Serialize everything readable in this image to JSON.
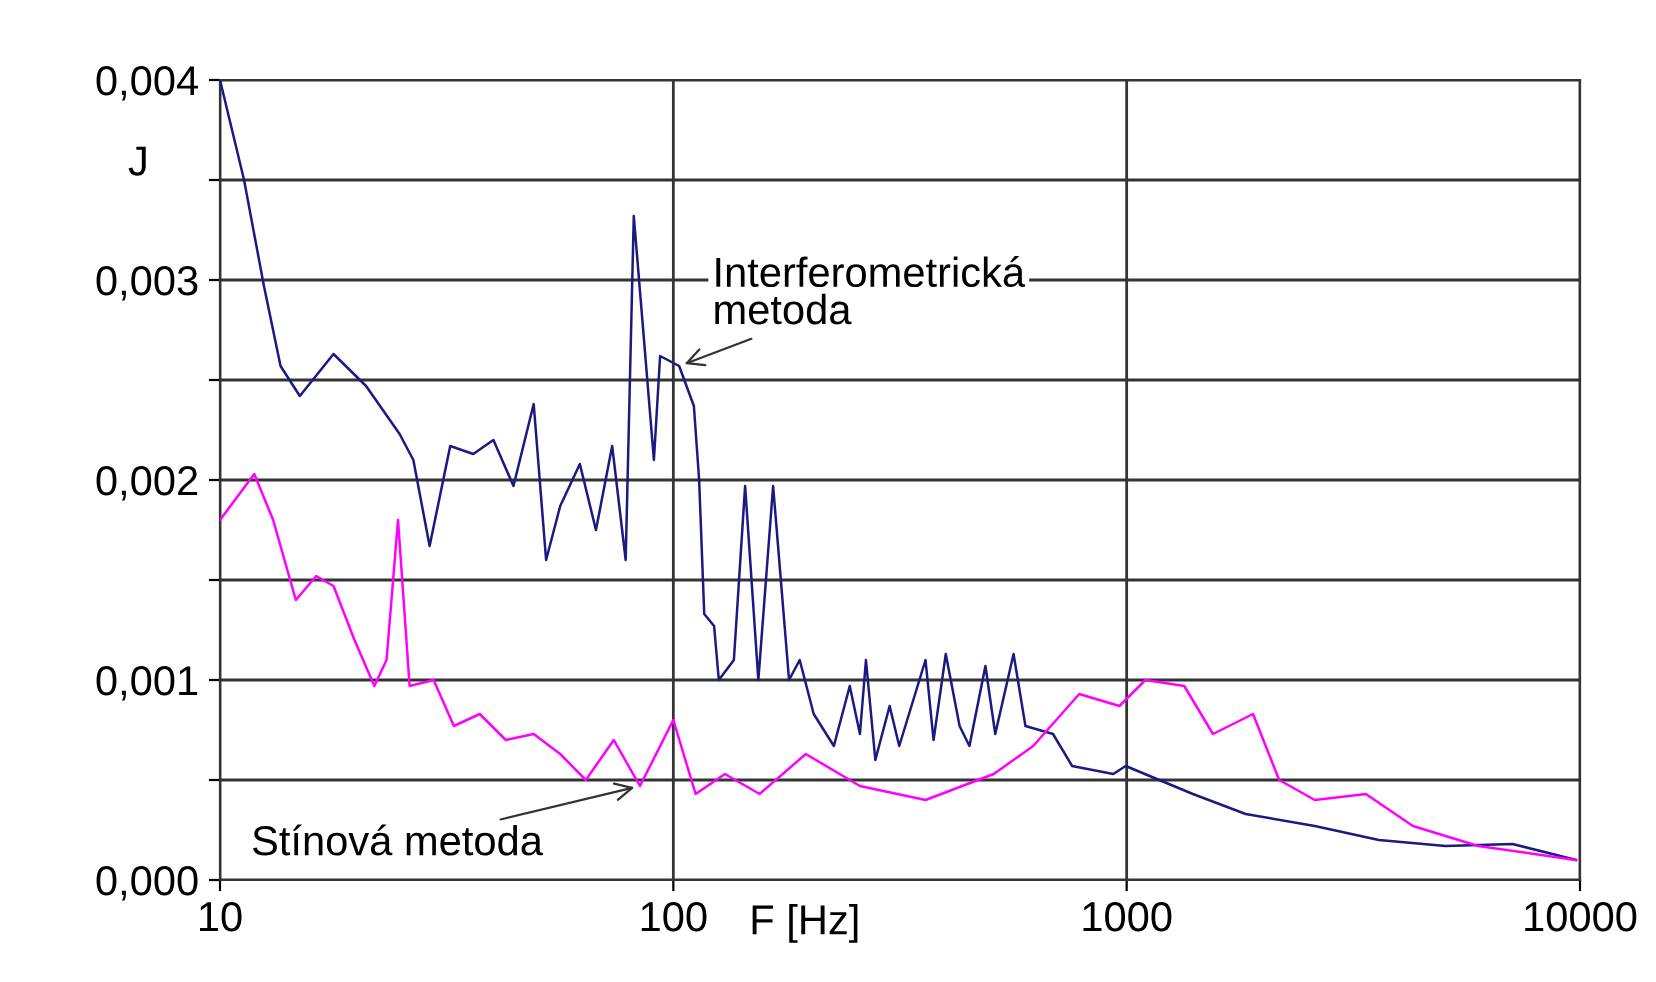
{
  "chart_data": {
    "type": "line",
    "xlabel": "F [Hz]",
    "ylabel": "J",
    "log": "x",
    "grid": true,
    "marker": "none",
    "line_style": "solid",
    "xlim": [
      10,
      10000
    ],
    "xticks": [
      10,
      100,
      1000,
      10000
    ],
    "ylim": [
      0,
      0.004
    ],
    "yticks": [
      {
        "value": 0,
        "label": "0,000"
      },
      {
        "value": 0.0005,
        "label": null
      },
      {
        "value": 0.001,
        "label": "0,001"
      },
      {
        "value": 0.0015,
        "label": null
      },
      {
        "value": 0.002,
        "label": "0,002"
      },
      {
        "value": 0.0025,
        "label": null
      },
      {
        "value": 0.003,
        "label": "0,003"
      },
      {
        "value": 0.0035,
        "label": null
      },
      {
        "value": 0.004,
        "label": "0,004"
      }
    ],
    "series": [
      {
        "color": "#1a1a80",
        "x": [
          10,
          11.3,
          12.5,
          13.6,
          15.0,
          17.8,
          21.0,
          24.9,
          26.7,
          29.0,
          32.2,
          36.2,
          40.1,
          44.4,
          49.2,
          52.4,
          56.3,
          62.2,
          67.5,
          73.3,
          78.5,
          81.8,
          90.6,
          93.5,
          103,
          111,
          114,
          117,
          123,
          126,
          136,
          144,
          154,
          166,
          180,
          190,
          204,
          226,
          245,
          258,
          266,
          279,
          300,
          315,
          360,
          375,
          399,
          428,
          450,
          488,
          513,
          563,
          598,
          688,
          758,
          934,
          995,
          1180,
          1400,
          1830,
          2600,
          3600,
          5050,
          7100,
          9800
        ],
        "values": [
          0.004,
          0.0035,
          0.00297,
          0.00257,
          0.00242,
          0.00263,
          0.00247,
          0.00223,
          0.0021,
          0.00167,
          0.00217,
          0.00213,
          0.0022,
          0.00197,
          0.00238,
          0.0016,
          0.00187,
          0.00208,
          0.00175,
          0.00217,
          0.0016,
          0.00332,
          0.0021,
          0.00262,
          0.00257,
          0.00237,
          0.002,
          0.00133,
          0.00127,
          0.001,
          0.0011,
          0.00197,
          0.001,
          0.00197,
          0.001,
          0.0011,
          0.00083,
          0.00067,
          0.00097,
          0.00073,
          0.0011,
          0.0006,
          0.00087,
          0.00067,
          0.0011,
          0.0007,
          0.00113,
          0.00077,
          0.00067,
          0.00107,
          0.00073,
          0.00113,
          0.00077,
          0.00073,
          0.00057,
          0.00053,
          0.00057,
          0.0005,
          0.00043,
          0.00033,
          0.00027,
          0.0002,
          0.00017,
          0.00018,
          0.0001
        ]
      },
      {
        "color": "#ff00ff",
        "x": [
          10,
          11.9,
          13.1,
          14.7,
          16.3,
          17.8,
          19.8,
          21.9,
          23.3,
          24.7,
          26.2,
          29.6,
          32.8,
          37.4,
          42.7,
          49.2,
          56.3,
          64.1,
          73.9,
          84.4,
          100,
          112,
          130,
          155,
          196,
          258,
          360,
          509,
          622,
          786,
          964,
          1100,
          1340,
          1550,
          1900,
          2170,
          2600,
          3370,
          4280,
          5960,
          9800
        ],
        "values": [
          0.0018,
          0.00203,
          0.0018,
          0.0014,
          0.00152,
          0.00147,
          0.0012,
          0.00097,
          0.0011,
          0.0018,
          0.00097,
          0.001,
          0.00077,
          0.00083,
          0.0007,
          0.00073,
          0.00063,
          0.0005,
          0.0007,
          0.00047,
          0.0008,
          0.00043,
          0.00053,
          0.00043,
          0.00063,
          0.00047,
          0.0004,
          0.00053,
          0.00067,
          0.00093,
          0.00087,
          0.001,
          0.00097,
          0.00073,
          0.00083,
          0.0005,
          0.0004,
          0.00043,
          0.00027,
          0.00017,
          0.0001
        ]
      }
    ],
    "annotations": [
      {
        "text": "Interferometrická\nmetoda",
        "x": 103,
        "y": 0.00257
      },
      {
        "text": "Stínová metoda",
        "x": 84.4,
        "y": 0.00047
      }
    ]
  }
}
